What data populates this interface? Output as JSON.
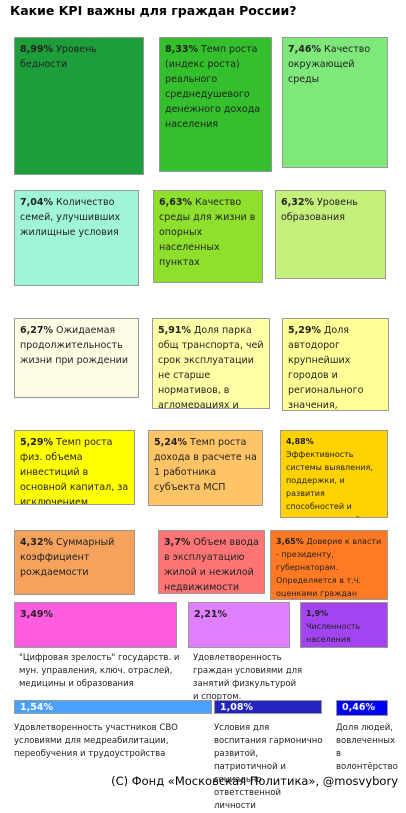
{
  "title": "Какие KPI важны для граждан России?",
  "items": [
    {
      "value": "8,99%",
      "label": "Уровень бедности"
    },
    {
      "value": "8,33%",
      "label": "Темп роста (индекс роста) реального среднедушевого денежного дохода населения"
    },
    {
      "value": "7,46%",
      "label": "Качество окружающей среды"
    },
    {
      "value": "7,04%",
      "label": "Количество семей, улучшивших жилищные условия"
    },
    {
      "value": "6,63%",
      "label": "Качество среды для жизни в опорных населенных пунктах"
    },
    {
      "value": "6,32%",
      "label": "Уровень образования"
    },
    {
      "value": "6,27%",
      "label": "Ожидаемая продолжительность жизни при рождении"
    },
    {
      "value": "5,91%",
      "label": "Доля парка общ транспорта, чей срок эксплуатации не старше нормативов, в агломерациях и городах"
    },
    {
      "value": "5,29%",
      "label": "Доля автодорог крупнейших городов и регионального значения, соответствующих нормативам"
    },
    {
      "value": "5,29%",
      "label": "Темп роста физ. объема инвестиций в основной капитал, за исключением федеральных средств"
    },
    {
      "value": "5,24%",
      "label": "Темп роста дохода в расчете на 1 работника субъекта МСП"
    },
    {
      "value": "4,88%",
      "label": "Эффективность системы выявления, поддержки, и развития способностей и талантов у детей и молодежи"
    },
    {
      "value": "4,32%",
      "label": "Суммарный коэффициент рождаемости"
    },
    {
      "value": "3,7%",
      "label": "Объем ввода в эксплуатацию жилой и нежилой недвижимости"
    },
    {
      "value": "3,65%",
      "label": "Доверие к власти - президенту, губернаторам. Определяется в т.ч. оценками граждан"
    },
    {
      "value": "3,49%",
      "label": "\"Цифровая зрелость\" государств. и мун. управления, ключ. отраслей, медицины и образования"
    },
    {
      "value": "2,21%",
      "label": "Удовлетворенность граждан условиями для занятий физкультурой и спортом."
    },
    {
      "value": "1,9%",
      "label": "Численность населения субъекта РФ"
    },
    {
      "value": "1,54%",
      "label": "Удовлетворенность участников СВО условиями для медреабилитации, переобучения и трудоустройства"
    },
    {
      "value": "1,08%",
      "label": "Условия для воспитания гармонично развитой, патриотичной и социально ответственной личности"
    },
    {
      "value": "0,46%",
      "label": "Доля людей, вовлеченных в волонтёрство"
    }
  ],
  "footer": "(С) Фонд «Московская Политика», @mosvybory"
}
